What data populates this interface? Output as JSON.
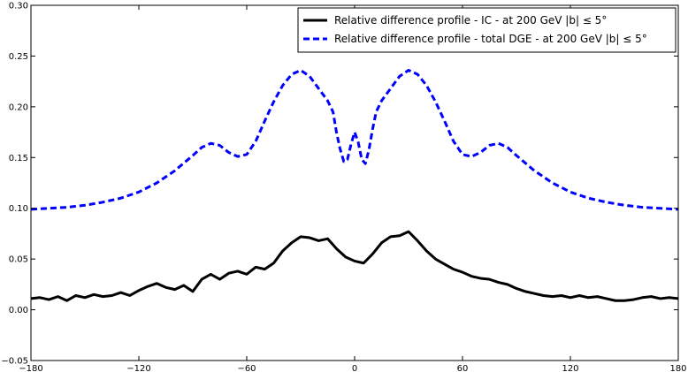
{
  "chart_data": {
    "type": "line",
    "title": "",
    "xlabel": "",
    "ylabel": "",
    "xlim": [
      -180,
      180
    ],
    "ylim": [
      -0.05,
      0.3
    ],
    "xticks": [
      -180,
      -120,
      -60,
      0,
      60,
      120,
      180
    ],
    "yticks": [
      -0.05,
      0.0,
      0.05,
      0.1,
      0.15,
      0.2,
      0.25,
      0.3
    ],
    "xtick_labels": [
      "−180",
      "−120",
      "−60",
      "0",
      "60",
      "120",
      "180"
    ],
    "ytick_labels": [
      "−0.05",
      "0.00",
      "0.05",
      "0.10",
      "0.15",
      "0.20",
      "0.25",
      "0.30"
    ],
    "grid": false,
    "legend_position": "top-right",
    "series": [
      {
        "name": "Relative difference profile - IC - at 200 GeV |b| ≤ 5°",
        "color": "#000000",
        "style": "solid",
        "x": [
          -180,
          -175,
          -170,
          -165,
          -160,
          -155,
          -150,
          -145,
          -140,
          -135,
          -130,
          -125,
          -120,
          -115,
          -110,
          -105,
          -100,
          -95,
          -90,
          -85,
          -80,
          -75,
          -70,
          -65,
          -60,
          -55,
          -50,
          -45,
          -40,
          -35,
          -30,
          -25,
          -20,
          -15,
          -10,
          -5,
          0,
          5,
          10,
          15,
          20,
          25,
          30,
          35,
          40,
          45,
          50,
          55,
          60,
          65,
          70,
          75,
          80,
          85,
          90,
          95,
          100,
          105,
          110,
          115,
          120,
          125,
          130,
          135,
          140,
          145,
          150,
          155,
          160,
          165,
          170,
          175,
          180
        ],
        "y": [
          0.011,
          0.012,
          0.01,
          0.013,
          0.009,
          0.014,
          0.012,
          0.015,
          0.013,
          0.014,
          0.017,
          0.014,
          0.019,
          0.023,
          0.026,
          0.022,
          0.02,
          0.024,
          0.018,
          0.03,
          0.035,
          0.03,
          0.036,
          0.038,
          0.035,
          0.042,
          0.04,
          0.046,
          0.058,
          0.066,
          0.072,
          0.071,
          0.068,
          0.07,
          0.06,
          0.052,
          0.048,
          0.046,
          0.055,
          0.066,
          0.072,
          0.073,
          0.077,
          0.068,
          0.058,
          0.05,
          0.045,
          0.04,
          0.037,
          0.033,
          0.031,
          0.03,
          0.027,
          0.025,
          0.021,
          0.018,
          0.016,
          0.014,
          0.013,
          0.014,
          0.012,
          0.014,
          0.012,
          0.013,
          0.011,
          0.009,
          0.009,
          0.01,
          0.012,
          0.013,
          0.011,
          0.012,
          0.011
        ]
      },
      {
        "name": "Relative difference profile - total DGE - at 200 GeV |b| ≤ 5°",
        "color": "#0000ff",
        "style": "dashed",
        "x": [
          -180,
          -170,
          -160,
          -150,
          -140,
          -130,
          -120,
          -110,
          -100,
          -90,
          -85,
          -80,
          -75,
          -70,
          -65,
          -60,
          -55,
          -50,
          -45,
          -40,
          -35,
          -30,
          -25,
          -20,
          -15,
          -12,
          -10,
          -8,
          -6,
          -4,
          -2,
          0,
          2,
          4,
          6,
          8,
          10,
          12,
          15,
          20,
          25,
          30,
          35,
          40,
          45,
          50,
          55,
          60,
          65,
          70,
          75,
          80,
          85,
          90,
          100,
          110,
          120,
          130,
          140,
          150,
          160,
          170,
          180
        ],
        "y": [
          0.099,
          0.1,
          0.101,
          0.103,
          0.106,
          0.11,
          0.116,
          0.125,
          0.137,
          0.152,
          0.16,
          0.164,
          0.162,
          0.155,
          0.151,
          0.153,
          0.166,
          0.186,
          0.205,
          0.221,
          0.232,
          0.236,
          0.23,
          0.218,
          0.206,
          0.195,
          0.174,
          0.158,
          0.146,
          0.148,
          0.163,
          0.175,
          0.165,
          0.148,
          0.144,
          0.158,
          0.178,
          0.195,
          0.206,
          0.218,
          0.23,
          0.236,
          0.232,
          0.221,
          0.205,
          0.186,
          0.166,
          0.153,
          0.151,
          0.155,
          0.162,
          0.164,
          0.16,
          0.152,
          0.137,
          0.125,
          0.116,
          0.11,
          0.106,
          0.103,
          0.101,
          0.1,
          0.099
        ]
      }
    ]
  }
}
